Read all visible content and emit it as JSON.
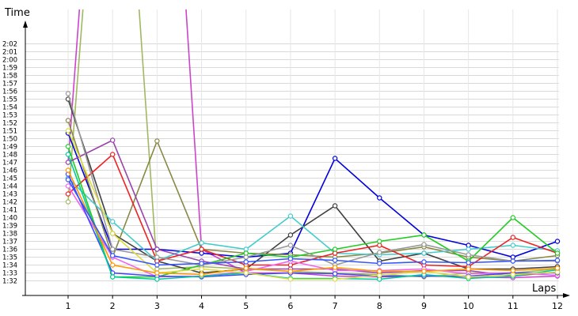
{
  "chart_data": {
    "type": "line",
    "xlabel": "Laps",
    "ylabel": "Time",
    "x": [
      1,
      2,
      3,
      4,
      5,
      6,
      7,
      8,
      9,
      10,
      11,
      12
    ],
    "xlim": [
      0,
      12
    ],
    "y_ticks": [
      "1:32",
      "1:33",
      "1:34",
      "1:35",
      "1:36",
      "1:37",
      "1:38",
      "1:39",
      "1:40",
      "1:41",
      "1:42",
      "1:43",
      "1:44",
      "1:45",
      "1:46",
      "1:47",
      "1:48",
      "1:49",
      "1:50",
      "1:51",
      "1:52",
      "1:53",
      "1:54",
      "1:55",
      "1:56",
      "1:57",
      "1:58",
      "1:59",
      "2:00",
      "2:01",
      "2:02"
    ],
    "ylim_seconds": [
      91,
      122
    ],
    "grid": true,
    "series": [
      {
        "color": "#cc44cc",
        "values": [
          107,
          183,
          183,
          96,
          93,
          93,
          92.6,
          92.5,
          92.6,
          92.5,
          92.4,
          92.6
        ]
      },
      {
        "color": "#a0b860",
        "values": [
          102,
          175,
          93.5,
          93.8,
          93.5,
          93.2,
          93,
          92.8,
          92.5,
          93,
          93,
          93.5
        ]
      },
      {
        "color": "#0000dd",
        "values": [
          110.7,
          96,
          96,
          95.5,
          95,
          95.5,
          107.5,
          102.5,
          97.8,
          96.5,
          95,
          97
        ]
      },
      {
        "color": "#404040",
        "values": [
          115,
          98,
          94.5,
          93,
          93.5,
          97.8,
          101.5,
          94.5,
          95.5,
          93.5,
          93.5,
          93.8
        ]
      },
      {
        "color": "#888844",
        "values": [
          112.3,
          95,
          109.7,
          96,
          95.5,
          95.3,
          95,
          95.5,
          96.3,
          95,
          94.5,
          95.2
        ]
      },
      {
        "color": "#44cccc",
        "values": [
          105,
          99.5,
          94.5,
          96.8,
          96,
          100.2,
          95.5,
          95.3,
          95.5,
          96,
          96.5,
          95.8
        ]
      },
      {
        "color": "#ee2222",
        "values": [
          103,
          108,
          94.5,
          96,
          94,
          94,
          95.5,
          96.5,
          94,
          93.8,
          97.5,
          95.5
        ]
      },
      {
        "color": "#22cc22",
        "values": [
          109,
          92.5,
          92.5,
          94,
          95.5,
          95,
          96,
          97,
          97.8,
          94.5,
          100,
          95.5
        ]
      },
      {
        "color": "#9944aa",
        "values": [
          107,
          109.8,
          96,
          94.5,
          93.5,
          93.5,
          93.5,
          93,
          93.3,
          93.3,
          92.6,
          93.1
        ]
      },
      {
        "color": "#999999",
        "values": [
          115.7,
          96,
          95,
          94,
          95,
          96.5,
          94,
          95.6,
          96.6,
          95.3,
          94.5,
          94.5
        ]
      },
      {
        "color": "#ee66ee",
        "values": [
          104,
          95,
          92.5,
          92.6,
          93.2,
          94.5,
          93.3,
          93.3,
          93.5,
          92.9,
          93,
          92.7
        ]
      },
      {
        "color": "#4444ff",
        "values": [
          105.5,
          93,
          92.6,
          92.5,
          92.8,
          93,
          92.9,
          92.6,
          92.6,
          92.6,
          93,
          93
        ]
      },
      {
        "color": "#00cc99",
        "values": [
          108,
          92.5,
          92.2,
          92.6,
          93,
          92.3,
          92.3,
          92.2,
          92.8,
          92.3,
          92.6,
          93.4
        ]
      },
      {
        "color": "#dddd44",
        "values": [
          111,
          98,
          93,
          93.5,
          93,
          92.2,
          92.2,
          92.7,
          93.2,
          92.5,
          92.8,
          93.1
        ]
      },
      {
        "color": "#ff9900",
        "values": [
          106,
          94,
          93,
          92.8,
          93.6,
          93.2,
          93.7,
          93.2,
          93.2,
          93.5,
          93.3,
          93.6
        ]
      },
      {
        "color": "#3355ff",
        "values": [
          104.8,
          95.2,
          94,
          94.2,
          94.4,
          94.8,
          94.6,
          94.2,
          94.4,
          94.3,
          94.5,
          94.6
        ]
      }
    ]
  }
}
